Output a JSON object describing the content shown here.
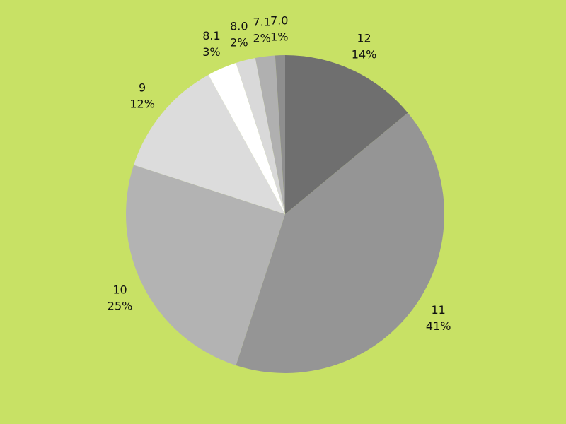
{
  "chart_data": {
    "type": "pie",
    "categories": [
      "12",
      "11",
      "10",
      "9",
      "8.1",
      "8.0",
      "7.1",
      "7.0"
    ],
    "values": [
      14,
      41,
      25,
      12,
      3,
      2,
      2,
      1
    ],
    "value_labels": [
      "14%",
      "41%",
      "25%",
      "12%",
      "3%",
      "2%",
      "2%",
      "1%"
    ],
    "colors": [
      "#6f6f6f",
      "#959595",
      "#b3b3b3",
      "#dcdcdc",
      "#ffffff",
      "#d9d9d9",
      "#b0b0b0",
      "#8e8e8e"
    ],
    "background": "#c8e165"
  }
}
